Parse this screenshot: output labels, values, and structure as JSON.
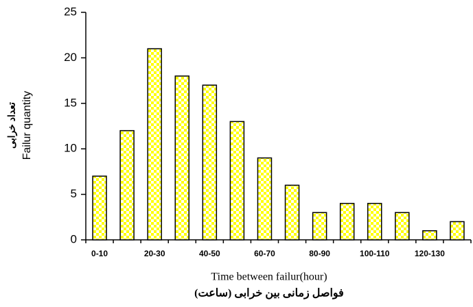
{
  "chart_data": {
    "type": "bar",
    "categories": [
      "0-10",
      null,
      "20-30",
      null,
      "40-50",
      null,
      "60-70",
      null,
      "80-90",
      null,
      "100-110",
      null,
      "120-130",
      null
    ],
    "values": [
      7,
      12,
      21,
      18,
      17,
      13,
      9,
      6,
      3,
      4,
      4,
      3,
      1,
      2
    ],
    "color": "#ffff00",
    "ylim": [
      0,
      25
    ],
    "yticks": [
      0,
      5,
      10,
      15,
      20,
      25
    ],
    "x_label": [
      "Time between failur(hour)",
      "فواصل زمانی بین خرابی (ساعت)"
    ],
    "y_label": [
      "تعداد خرابی",
      "Failur quantity"
    ]
  }
}
